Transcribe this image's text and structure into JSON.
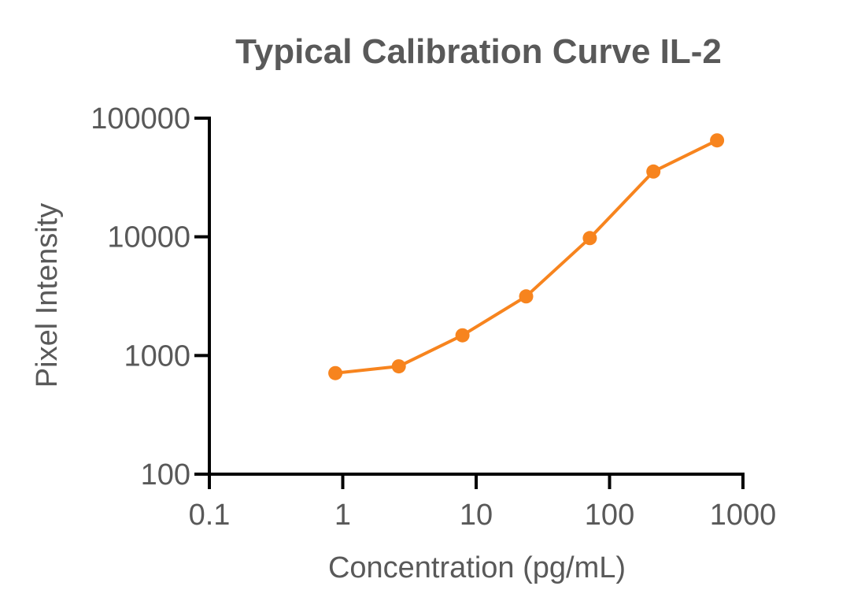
{
  "chart_data": {
    "type": "line",
    "title": "Typical Calibration Curve IL-2",
    "xlabel": "Concentration (pg/mL)",
    "ylabel": "Pixel Intensity",
    "xscale": "log",
    "yscale": "log",
    "xlim": [
      0.1,
      1000
    ],
    "ylim": [
      100,
      100000
    ],
    "xticks": [
      0.1,
      1,
      10,
      100,
      1000
    ],
    "xtick_labels": [
      "0.1",
      "1",
      "10",
      "100",
      "1000"
    ],
    "yticks": [
      100,
      1000,
      10000,
      100000
    ],
    "ytick_labels": [
      "100",
      "1000",
      "10000",
      "100000"
    ],
    "grid": false,
    "legend": "none",
    "series": [
      {
        "color": "#F7841E",
        "marker": "circle",
        "x": [
          0.88,
          2.63,
          7.9,
          23.7,
          71.1,
          213,
          640
        ],
        "y": [
          710,
          810,
          1480,
          3150,
          9750,
          35500,
          65000
        ]
      }
    ]
  }
}
